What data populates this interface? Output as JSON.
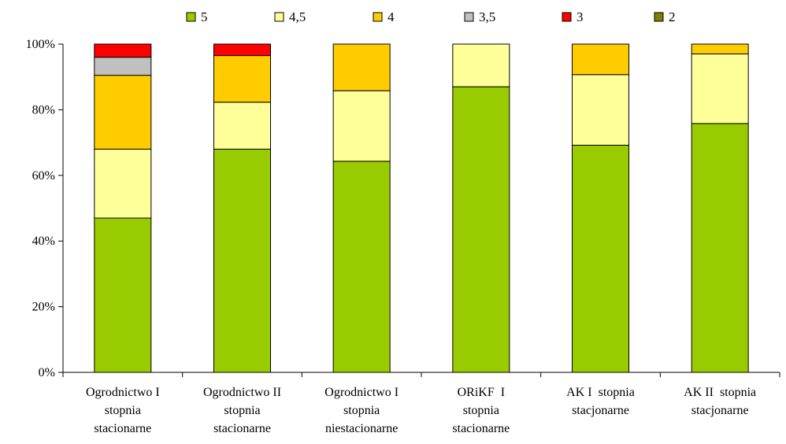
{
  "chart_data": {
    "type": "bar",
    "stacked": true,
    "percent": true,
    "categories": [
      [
        "Ogrodnictwo I",
        "stopnia",
        "stacionarne"
      ],
      [
        "Ogrodnictwo II",
        "stopnia",
        "stacionarne"
      ],
      [
        "Ogrodnictwo I",
        "stopnia",
        "niestacionarne"
      ],
      [
        "ORiKF  I",
        "stopnia",
        "stacionarne"
      ],
      [
        "AK I  stopnia",
        "stacjonarne"
      ],
      [
        "AK II  stopnia",
        "stacjonarne"
      ]
    ],
    "series": [
      {
        "name": "5",
        "color": "#99cc00",
        "values": [
          47,
          68,
          64.3,
          87,
          69.2,
          75.8
        ]
      },
      {
        "name": "4,5",
        "color": "#ffff99",
        "values": [
          21,
          14.3,
          21.5,
          13,
          21.5,
          21.2
        ]
      },
      {
        "name": "4",
        "color": "#ffcc00",
        "values": [
          22.5,
          14.2,
          14.2,
          0,
          9.3,
          3
        ]
      },
      {
        "name": "3,5",
        "color": "#c0c0c0",
        "values": [
          5.5,
          0,
          0,
          0,
          0,
          0
        ]
      },
      {
        "name": "3",
        "color": "#ff0000",
        "values": [
          4,
          3.5,
          0,
          0,
          0,
          0
        ]
      },
      {
        "name": "2",
        "color": "#808000",
        "values": [
          0,
          0,
          0,
          0,
          0,
          0
        ]
      }
    ],
    "ylim": [
      0,
      100
    ],
    "yticks": [
      "0%",
      "20%",
      "40%",
      "60%",
      "80%",
      "100%"
    ],
    "legend_position": "top",
    "grid": false
  }
}
